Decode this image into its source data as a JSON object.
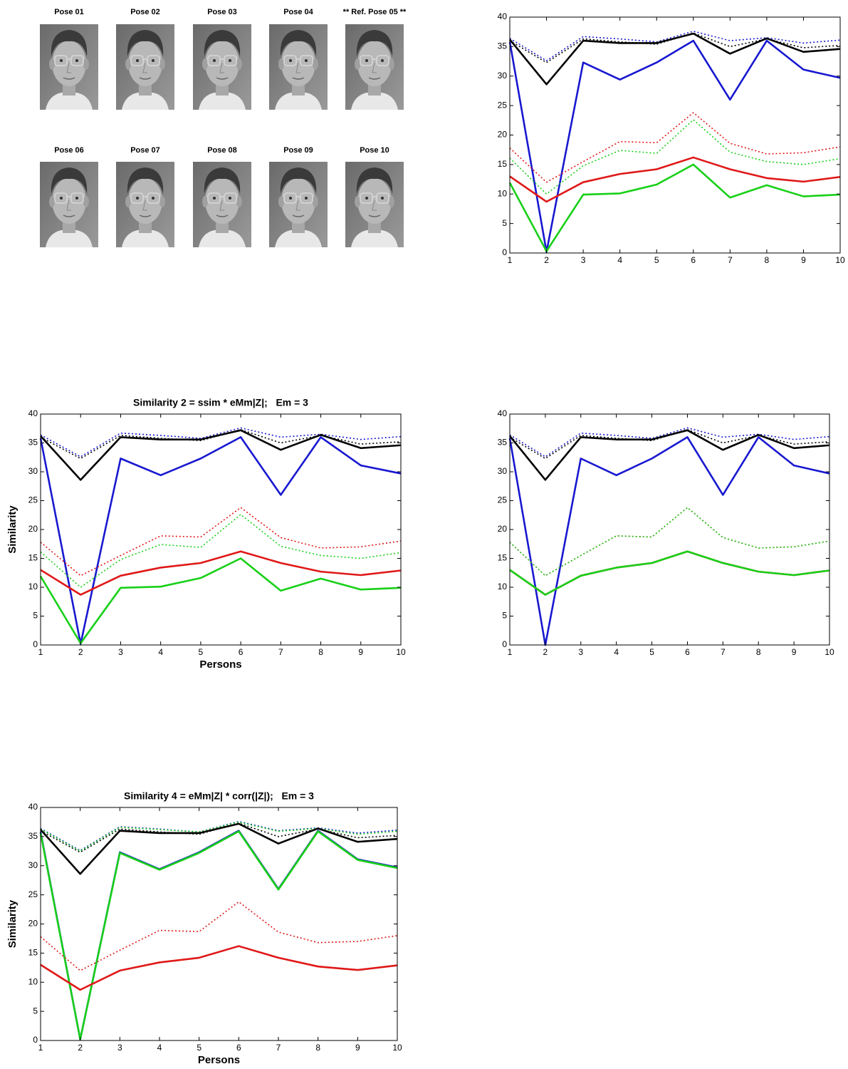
{
  "poses": [
    "Pose 01",
    "Pose 02",
    "Pose 03",
    "Pose 04",
    "** Ref. Pose 05 **",
    "Pose 06",
    "Pose 07",
    "Pose 08",
    "Pose 09",
    "Pose 10"
  ],
  "chart_data": [
    {
      "type": "line",
      "x": [
        1,
        2,
        3,
        4,
        5,
        6,
        7,
        8,
        9,
        10
      ],
      "xlim": [
        1,
        10
      ],
      "xticks": [
        1,
        2,
        3,
        4,
        5,
        6,
        7,
        8,
        9,
        10
      ],
      "ylim": [
        0,
        40
      ],
      "yticks": [
        0,
        5,
        10,
        15,
        20,
        25,
        30,
        35,
        40
      ],
      "series": [
        {
          "color": "#1818d0",
          "style": "dotted",
          "values": [
            36.4,
            32.6,
            36.7,
            36.3,
            35.8,
            37.6,
            36.0,
            36.5,
            35.6,
            36.1
          ]
        },
        {
          "color": "#000000",
          "style": "dotted",
          "values": [
            36.0,
            32.3,
            36.3,
            35.8,
            35.4,
            37.3,
            35.0,
            36.3,
            34.8,
            35.2
          ]
        },
        {
          "color": "#000000",
          "style": "solid",
          "values": [
            36.2,
            28.6,
            36.0,
            35.6,
            35.6,
            37.2,
            33.8,
            36.4,
            34.1,
            34.6
          ]
        },
        {
          "color": "#1818d0",
          "style": "solid",
          "values": [
            35.8,
            0.2,
            32.3,
            29.4,
            32.3,
            36.0,
            26.0,
            36.0,
            31.1,
            29.7
          ]
        },
        {
          "color": "#e01818",
          "style": "dotted",
          "values": [
            17.8,
            12.0,
            15.5,
            18.9,
            18.7,
            23.8,
            18.6,
            16.8,
            17.0,
            18.0
          ]
        },
        {
          "color": "#18d018",
          "style": "dotted",
          "values": [
            16.1,
            10.0,
            14.8,
            17.4,
            16.9,
            22.6,
            17.1,
            15.5,
            15.0,
            16.0
          ]
        },
        {
          "color": "#e01818",
          "style": "solid",
          "values": [
            13.0,
            8.7,
            12.0,
            13.4,
            14.2,
            16.2,
            14.2,
            12.7,
            12.1,
            12.9
          ]
        },
        {
          "color": "#18d018",
          "style": "solid",
          "values": [
            11.9,
            0.3,
            9.9,
            10.1,
            11.6,
            15.0,
            9.4,
            11.5,
            9.6,
            9.9
          ]
        }
      ]
    },
    {
      "type": "line",
      "title": "Similarity 2 = ssim * eMm|Z|;   Em = 3",
      "x_label": "Persons",
      "y_label": "Similarity",
      "x": [
        1,
        2,
        3,
        4,
        5,
        6,
        7,
        8,
        9,
        10
      ],
      "xlim": [
        1,
        10
      ],
      "xticks": [
        1,
        2,
        3,
        4,
        5,
        6,
        7,
        8,
        9,
        10
      ],
      "ylim": [
        0,
        40
      ],
      "yticks": [
        0,
        5,
        10,
        15,
        20,
        25,
        30,
        35,
        40
      ],
      "series": [
        {
          "color": "#1818d0",
          "style": "dotted",
          "values": [
            36.4,
            32.6,
            36.7,
            36.3,
            35.8,
            37.6,
            36.0,
            36.5,
            35.6,
            36.1
          ]
        },
        {
          "color": "#000000",
          "style": "dotted",
          "values": [
            36.0,
            32.3,
            36.3,
            35.8,
            35.4,
            37.3,
            35.0,
            36.3,
            34.8,
            35.2
          ]
        },
        {
          "color": "#000000",
          "style": "solid",
          "values": [
            36.2,
            28.6,
            36.0,
            35.6,
            35.6,
            37.2,
            33.8,
            36.4,
            34.1,
            34.6
          ]
        },
        {
          "color": "#1818d0",
          "style": "solid",
          "values": [
            35.8,
            0.2,
            32.3,
            29.4,
            32.3,
            36.0,
            26.0,
            36.0,
            31.1,
            29.7
          ]
        },
        {
          "color": "#e01818",
          "style": "dotted",
          "values": [
            17.8,
            12.0,
            15.5,
            18.9,
            18.7,
            23.8,
            18.6,
            16.8,
            17.0,
            18.0
          ]
        },
        {
          "color": "#18d018",
          "style": "dotted",
          "values": [
            16.1,
            10.0,
            14.8,
            17.4,
            16.9,
            22.6,
            17.1,
            15.5,
            15.0,
            16.0
          ]
        },
        {
          "color": "#e01818",
          "style": "solid",
          "values": [
            13.0,
            8.7,
            12.0,
            13.4,
            14.2,
            16.2,
            14.2,
            12.7,
            12.1,
            12.9
          ]
        },
        {
          "color": "#18d018",
          "style": "solid",
          "values": [
            11.9,
            0.3,
            9.9,
            10.1,
            11.6,
            15.0,
            9.4,
            11.5,
            9.6,
            9.9
          ]
        }
      ]
    },
    {
      "type": "line",
      "x": [
        1,
        2,
        3,
        4,
        5,
        6,
        7,
        8,
        9,
        10
      ],
      "xlim": [
        1,
        10
      ],
      "xticks": [
        1,
        2,
        3,
        4,
        5,
        6,
        7,
        8,
        9,
        10
      ],
      "ylim": [
        0,
        40
      ],
      "yticks": [
        0,
        5,
        10,
        15,
        20,
        25,
        30,
        35,
        40
      ],
      "series": [
        {
          "color": "#1818d0",
          "style": "dotted",
          "values": [
            36.4,
            32.6,
            36.7,
            36.3,
            35.8,
            37.6,
            36.0,
            36.5,
            35.6,
            36.1
          ]
        },
        {
          "color": "#000000",
          "style": "dotted",
          "values": [
            36.0,
            32.3,
            36.3,
            35.8,
            35.4,
            37.3,
            35.0,
            36.3,
            34.8,
            35.2
          ]
        },
        {
          "color": "#000000",
          "style": "solid",
          "values": [
            36.2,
            28.6,
            36.0,
            35.6,
            35.6,
            37.2,
            33.8,
            36.4,
            34.1,
            34.6
          ]
        },
        {
          "color": "#1818d0",
          "style": "solid",
          "values": [
            35.8,
            0.0,
            32.3,
            29.4,
            32.3,
            36.0,
            26.0,
            36.0,
            31.1,
            29.7
          ]
        },
        {
          "color": "#e01818",
          "style": "dotted",
          "values": [
            17.8,
            12.0,
            15.5,
            18.9,
            18.7,
            23.8,
            18.6,
            16.8,
            17.0,
            18.0
          ]
        },
        {
          "color": "#18d018",
          "style": "dotted",
          "values": [
            17.8,
            12.0,
            15.5,
            18.9,
            18.7,
            23.8,
            18.6,
            16.8,
            17.0,
            18.0
          ]
        },
        {
          "color": "#e01818",
          "style": "solid",
          "values": [
            13.0,
            8.7,
            12.0,
            13.4,
            14.2,
            16.2,
            14.2,
            12.7,
            12.1,
            12.9
          ]
        },
        {
          "color": "#18d018",
          "style": "solid",
          "values": [
            13.0,
            8.7,
            12.0,
            13.4,
            14.2,
            16.2,
            14.2,
            12.7,
            12.1,
            12.9
          ]
        }
      ]
    },
    {
      "type": "line",
      "title": "Similarity 4 = eMm|Z| * corr(|Z|);   Em = 3",
      "x_label": "Persons",
      "y_label": "Similarity",
      "x": [
        1,
        2,
        3,
        4,
        5,
        6,
        7,
        8,
        9,
        10
      ],
      "xlim": [
        1,
        10
      ],
      "xticks": [
        1,
        2,
        3,
        4,
        5,
        6,
        7,
        8,
        9,
        10
      ],
      "ylim": [
        0,
        40
      ],
      "yticks": [
        0,
        5,
        10,
        15,
        20,
        25,
        30,
        35,
        40
      ],
      "series": [
        {
          "color": "#1818d0",
          "style": "dotted",
          "values": [
            36.4,
            32.6,
            36.7,
            36.3,
            35.8,
            37.6,
            36.0,
            36.5,
            35.6,
            36.1
          ]
        },
        {
          "color": "#000000",
          "style": "dotted",
          "values": [
            36.0,
            32.3,
            36.3,
            35.8,
            35.4,
            37.3,
            35.0,
            36.3,
            34.8,
            35.2
          ]
        },
        {
          "color": "#18d018",
          "style": "dotted",
          "values": [
            36.3,
            32.5,
            36.6,
            36.2,
            35.8,
            37.5,
            35.9,
            36.4,
            35.4,
            35.9
          ]
        },
        {
          "color": "#000000",
          "style": "solid",
          "values": [
            36.2,
            28.6,
            36.0,
            35.6,
            35.6,
            37.2,
            33.8,
            36.4,
            34.1,
            34.6
          ]
        },
        {
          "color": "#1818d0",
          "style": "solid",
          "values": [
            35.8,
            0.2,
            32.3,
            29.4,
            32.3,
            36.0,
            26.0,
            36.0,
            31.1,
            29.7
          ]
        },
        {
          "color": "#18d018",
          "style": "solid",
          "values": [
            35.6,
            0.2,
            32.2,
            29.3,
            32.2,
            35.9,
            25.9,
            35.9,
            31.0,
            29.6
          ]
        },
        {
          "color": "#e01818",
          "style": "dotted",
          "values": [
            17.8,
            12.0,
            15.5,
            18.9,
            18.7,
            23.8,
            18.6,
            16.8,
            17.0,
            18.0
          ]
        },
        {
          "color": "#e01818",
          "style": "solid",
          "values": [
            13.0,
            8.7,
            12.0,
            13.4,
            14.2,
            16.2,
            14.2,
            12.7,
            12.1,
            12.9
          ]
        }
      ]
    }
  ]
}
